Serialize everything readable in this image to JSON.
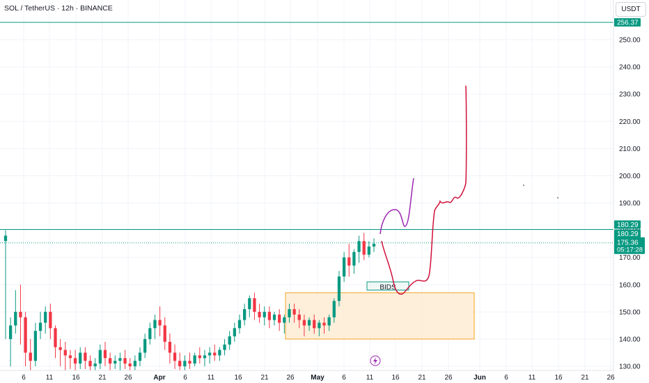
{
  "header": {
    "symbol_title": "SOL / TetherUS · 12h · BINANCE",
    "currency": "USDT"
  },
  "chart_data": {
    "type": "candlestick",
    "title": "SOL / TetherUS · 12h · BINANCE",
    "ylim": [
      128,
      262
    ],
    "y_ticks": [
      130,
      140,
      150,
      160,
      170,
      180,
      190,
      200,
      210,
      220,
      230,
      240,
      250
    ],
    "x_ticks": [
      "6",
      "11",
      "16",
      "21",
      "26",
      "Apr",
      "6",
      "11",
      "16",
      "21",
      "26",
      "May",
      "6",
      "11",
      "16",
      "21",
      "26",
      "Jun",
      "6",
      "11",
      "16",
      "21",
      "26"
    ],
    "colors": {
      "up": "#089981",
      "down": "#f23645",
      "level_line": "#089981",
      "zone_fill": "#fde9cf",
      "zone_border": "#f5a623",
      "drawing_purple": "#9c27b0",
      "drawing_red": "#d0103a"
    },
    "levels": [
      {
        "label": "256.37",
        "value": 256.37
      },
      {
        "label": "180.29",
        "value": 180.29
      }
    ],
    "current_price": {
      "label": "175.36",
      "countdown": "05:17:28",
      "value": 175.36
    },
    "annotations": {
      "bids_label": "BIDS",
      "bids_box": {
        "low": 158,
        "high": 161
      },
      "demand_zone": {
        "low": 140,
        "high": 157
      }
    },
    "candles": [
      [
        176,
        180,
        178,
        140
      ],
      [
        140,
        148,
        145,
        130
      ],
      [
        145,
        158,
        150,
        142
      ],
      [
        150,
        160,
        148,
        138
      ],
      [
        148,
        150,
        135,
        130
      ],
      [
        135,
        140,
        132,
        128
      ],
      [
        132,
        146,
        143,
        130
      ],
      [
        143,
        150,
        146,
        140
      ],
      [
        146,
        152,
        150,
        142
      ],
      [
        150,
        153,
        144,
        140
      ],
      [
        144,
        145,
        137,
        133
      ],
      [
        137,
        140,
        136,
        130
      ],
      [
        136,
        139,
        134,
        128
      ],
      [
        134,
        136,
        133,
        129
      ],
      [
        133,
        136,
        131,
        128
      ],
      [
        131,
        137,
        135,
        129
      ],
      [
        135,
        137,
        132,
        129
      ],
      [
        132,
        134,
        130,
        128
      ],
      [
        130,
        133,
        131,
        128
      ],
      [
        131,
        138,
        136,
        129
      ],
      [
        136,
        139,
        133,
        130
      ],
      [
        133,
        135,
        131,
        128
      ],
      [
        131,
        134,
        132,
        129
      ],
      [
        132,
        135,
        133,
        128
      ],
      [
        133,
        136,
        131,
        129
      ],
      [
        131,
        133,
        130,
        128
      ],
      [
        130,
        134,
        132,
        128
      ],
      [
        132,
        137,
        135,
        130
      ],
      [
        135,
        142,
        140,
        133
      ],
      [
        140,
        146,
        144,
        138
      ],
      [
        144,
        149,
        147,
        140
      ],
      [
        147,
        152,
        145,
        141
      ],
      [
        145,
        148,
        139,
        136
      ],
      [
        139,
        142,
        135,
        131
      ],
      [
        135,
        138,
        132,
        129
      ],
      [
        132,
        135,
        130,
        128
      ],
      [
        130,
        134,
        132,
        128
      ],
      [
        132,
        135,
        131,
        129
      ],
      [
        131,
        135,
        134,
        130
      ],
      [
        134,
        137,
        133,
        131
      ],
      [
        133,
        136,
        134,
        130
      ],
      [
        134,
        137,
        135,
        131
      ],
      [
        135,
        138,
        134,
        132
      ],
      [
        134,
        137,
        136,
        132
      ],
      [
        136,
        140,
        138,
        134
      ],
      [
        138,
        143,
        141,
        136
      ],
      [
        141,
        146,
        144,
        139
      ],
      [
        144,
        149,
        147,
        142
      ],
      [
        147,
        153,
        151,
        145
      ],
      [
        151,
        156,
        155,
        148
      ],
      [
        155,
        157,
        150,
        147
      ],
      [
        150,
        153,
        148,
        146
      ],
      [
        148,
        152,
        150,
        145
      ],
      [
        150,
        152,
        147,
        144
      ],
      [
        147,
        150,
        149,
        145
      ],
      [
        149,
        151,
        146,
        143
      ],
      [
        146,
        149,
        148,
        142
      ],
      [
        148,
        153,
        151,
        146
      ],
      [
        151,
        153,
        149,
        146
      ],
      [
        149,
        151,
        147,
        144
      ],
      [
        147,
        149,
        145,
        141
      ],
      [
        145,
        148,
        147,
        143
      ],
      [
        147,
        149,
        144,
        142
      ],
      [
        144,
        147,
        146,
        141
      ],
      [
        146,
        148,
        145,
        142
      ],
      [
        145,
        149,
        148,
        143
      ],
      [
        148,
        155,
        154,
        146
      ],
      [
        154,
        165,
        163,
        152
      ],
      [
        163,
        172,
        170,
        161
      ],
      [
        170,
        175,
        167,
        163
      ],
      [
        167,
        173,
        172,
        164
      ],
      [
        172,
        178,
        176,
        168
      ],
      [
        176,
        179,
        171,
        169
      ],
      [
        171,
        176,
        174,
        170
      ],
      [
        174,
        177,
        175,
        172
      ]
    ]
  }
}
